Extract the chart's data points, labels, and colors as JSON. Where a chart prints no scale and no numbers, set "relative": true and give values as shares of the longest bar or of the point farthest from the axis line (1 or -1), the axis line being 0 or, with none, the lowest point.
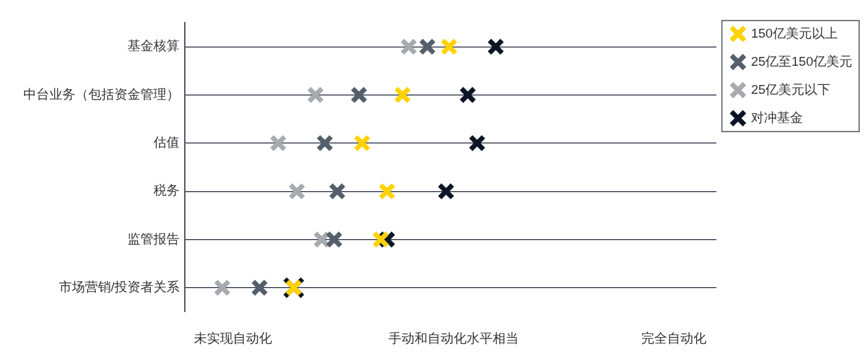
{
  "chart_data": {
    "type": "scatter",
    "orientation": "horizontal",
    "relative": true,
    "categories": [
      "基金核算",
      "中台业务（包括资金管理）",
      "估值",
      "税务",
      "监管报告",
      "市场营销/投资者关系"
    ],
    "annotations": [
      "未实现自动化",
      "手动和自动化水平相当",
      "完全自动化"
    ],
    "series": [
      {
        "name": "150亿美元以上",
        "color": "#ffd200",
        "values": [
          0.85,
          0.7,
          0.57,
          0.65,
          0.63,
          0.35
        ]
      },
      {
        "name": "25亿至150亿美元",
        "color": "#555f6b",
        "values": [
          0.78,
          0.56,
          0.45,
          0.49,
          0.48,
          0.24
        ]
      },
      {
        "name": "25亿美元以下",
        "color": "#a7abaf",
        "values": [
          0.72,
          0.42,
          0.3,
          0.36,
          0.44,
          0.12
        ]
      },
      {
        "name": "对冲基金",
        "color": "#0b1526",
        "values": [
          1,
          0.91,
          0.94,
          0.84,
          0.65,
          0.35
        ]
      }
    ],
    "grid": "y",
    "legend": "right",
    "marker": "cross"
  }
}
